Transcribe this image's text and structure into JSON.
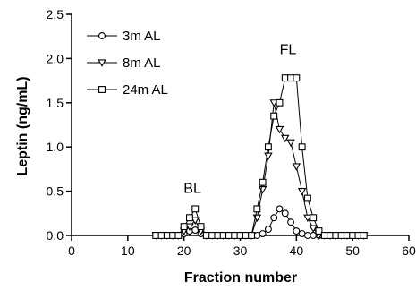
{
  "chart_data": {
    "type": "line",
    "xlabel": "Fraction number",
    "ylabel": "Leptin (ng/mL)",
    "xlim": [
      0,
      60
    ],
    "ylim": [
      0,
      2.5
    ],
    "xticks": [
      0,
      10,
      20,
      30,
      40,
      50,
      60
    ],
    "yticks": [
      0.0,
      0.5,
      1.0,
      1.5,
      2.0,
      2.5
    ],
    "ytick_labels": [
      "0.0",
      "0.5",
      "1.0",
      "1.5",
      "2.0",
      "2.5"
    ],
    "grid": false,
    "legend_position": "top-left",
    "annotations": [
      {
        "text": "BL",
        "x": 21.5,
        "y": 0.48
      },
      {
        "text": "FL",
        "x": 38.5,
        "y": 2.05
      }
    ],
    "x": [
      15,
      16,
      17,
      18,
      19,
      20,
      21,
      22,
      23,
      24,
      25,
      26,
      27,
      28,
      29,
      30,
      31,
      32,
      33,
      34,
      35,
      36,
      37,
      38,
      39,
      40,
      41,
      42,
      43,
      44,
      45,
      46,
      47,
      48,
      49,
      50,
      51,
      52
    ],
    "series": [
      {
        "name": "3m AL",
        "marker": "circle",
        "values": [
          0,
          0,
          0,
          0,
          0,
          0.02,
          0.05,
          0.06,
          0.02,
          0,
          0,
          0,
          0,
          0,
          0,
          0,
          0,
          0,
          0,
          0.02,
          0.07,
          0.2,
          0.3,
          0.25,
          0.15,
          0.05,
          0.02,
          0,
          0,
          0,
          0,
          0,
          0,
          0,
          0,
          0,
          0,
          0
        ]
      },
      {
        "name": "8m AL",
        "marker": "triangle-down",
        "values": [
          0,
          0,
          0,
          0,
          0,
          0.05,
          0.1,
          0.17,
          0.05,
          0,
          0,
          0,
          0,
          0,
          0,
          0,
          0,
          0,
          0.2,
          0.52,
          0.9,
          1.5,
          1.2,
          1.1,
          1.05,
          0.78,
          0.5,
          0.2,
          0.08,
          0,
          0,
          0,
          0,
          0,
          0,
          0,
          0,
          0
        ]
      },
      {
        "name": "24m AL",
        "marker": "square",
        "values": [
          0,
          0,
          0,
          0,
          0,
          0.1,
          0.2,
          0.3,
          0.1,
          0,
          0,
          0,
          0,
          0,
          0,
          0,
          0,
          0,
          0.3,
          0.6,
          1.0,
          1.35,
          1.5,
          1.78,
          1.78,
          1.78,
          1.0,
          0.42,
          0.2,
          0.05,
          0,
          0,
          0,
          0,
          0,
          0,
          0,
          0
        ]
      }
    ]
  }
}
